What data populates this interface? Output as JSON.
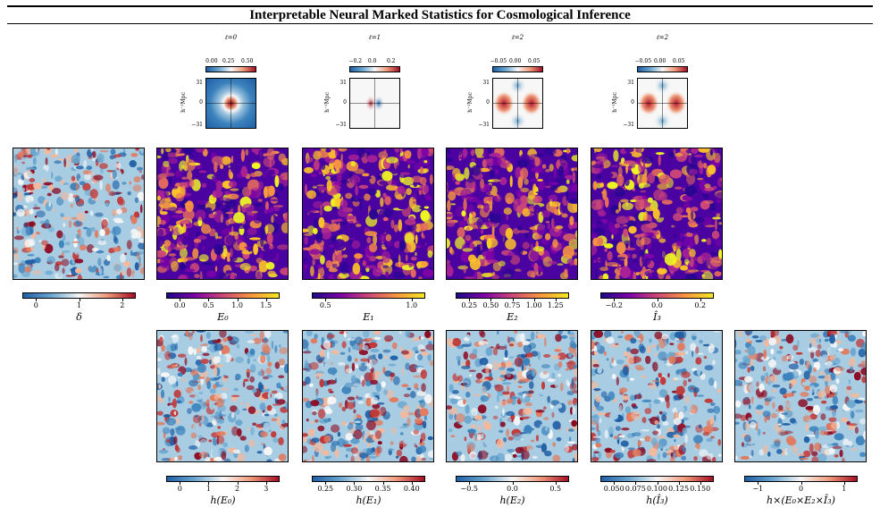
{
  "title": "Interpretable Neural Marked Statistics for Cosmological Inference",
  "kernels": [
    {
      "label": "ℓ=0",
      "ticks": [
        "0.00",
        "0.25",
        "0.50"
      ],
      "yticks": [
        "31",
        "0",
        "−31"
      ],
      "ylabel": "h⁻¹Mpc"
    },
    {
      "label": "ℓ=1",
      "ticks": [
        "−0.2",
        "0.0",
        "0.2"
      ],
      "yticks": [
        "31",
        "0",
        "−31"
      ],
      "ylabel": "h⁻¹Mpc"
    },
    {
      "label": "ℓ=2",
      "ticks": [
        "−0.05",
        "0.00",
        "0.05"
      ],
      "yticks": [
        "31",
        "0",
        "−31"
      ],
      "ylabel": "h⁻¹Mpc"
    },
    {
      "label": "ℓ=2",
      "ticks": [
        "−0.05",
        "0.00",
        "0.05"
      ],
      "yticks": [
        "31",
        "0",
        "−31"
      ],
      "ylabel": "h⁻¹Mpc"
    }
  ],
  "row2": [
    {
      "label": "δ",
      "ticks": [
        "0",
        "1",
        "2"
      ],
      "cmap": "RdBu"
    },
    {
      "label": "E₀",
      "ticks": [
        "0.0",
        "0.5",
        "1.0",
        "1.5"
      ],
      "cmap": "plasma"
    },
    {
      "label": "E₁",
      "ticks": [
        "0.5",
        "1.0"
      ],
      "cmap": "plasma"
    },
    {
      "label": "E₂",
      "ticks": [
        "0.25",
        "0.50",
        "0.75",
        "1.00",
        "1.25"
      ],
      "cmap": "plasma"
    },
    {
      "label": "Î₃",
      "ticks": [
        "−0.2",
        "0.0",
        "0.2"
      ],
      "cmap": "plasma"
    }
  ],
  "row3": [
    {
      "label": "h(E₀)",
      "ticks": [
        "0",
        "1",
        "2",
        "3"
      ],
      "cmap": "RdBu"
    },
    {
      "label": "h(E₁)",
      "ticks": [
        "0.25",
        "0.30",
        "0.35",
        "0.40"
      ],
      "cmap": "RdBu"
    },
    {
      "label": "h(E₂)",
      "ticks": [
        "−0.5",
        "0.0",
        "0.5"
      ],
      "cmap": "RdBu"
    },
    {
      "label": "h(Î₃)",
      "ticks": [
        "0.050",
        "0.075",
        "0.100",
        "0.125",
        "0.150"
      ],
      "cmap": "RdBu"
    },
    {
      "label": "h×(E₀×E₂×Î₃)",
      "ticks": [
        "−1",
        "0",
        "1"
      ],
      "cmap": "RdBu"
    }
  ],
  "colors": {
    "rdbu_low": "#1f5fa6",
    "rdbu_mid": "#f7f7f7",
    "rdbu_high": "#a50f25",
    "plasma_low": "#1b0a88",
    "plasma_mid": "#cc4778",
    "plasma_high": "#f5e722"
  }
}
